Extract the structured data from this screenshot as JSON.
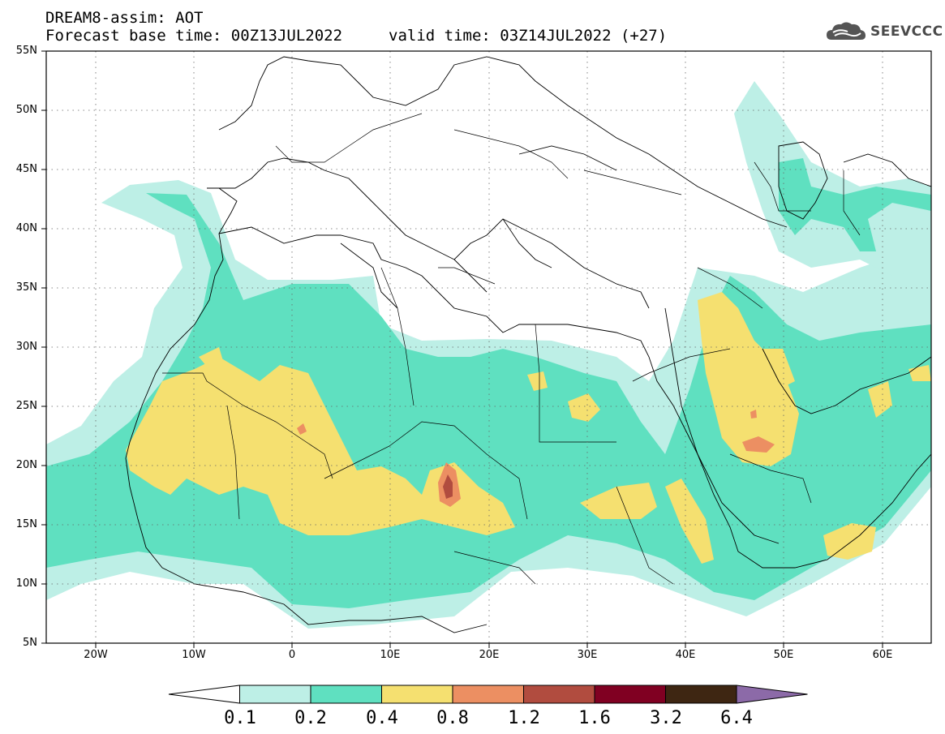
{
  "header": {
    "model_line": "DREAM8-assim: AOT",
    "base_time_line": "Forecast base time: 00Z13JUL2022",
    "valid_time_line": "valid time: 03Z14JUL2022 (+27)"
  },
  "logo": {
    "text": "SEEVCCC",
    "icon": "cloud-icon"
  },
  "map": {
    "lat_labels": [
      "55N",
      "50N",
      "45N",
      "40N",
      "35N",
      "30N",
      "25N",
      "20N",
      "15N",
      "10N",
      "5N"
    ],
    "lon_labels": [
      "20W",
      "10W",
      "0",
      "10E",
      "20E",
      "30E",
      "40E",
      "50E",
      "60E"
    ],
    "extent": {
      "lon": [
        -25,
        65
      ],
      "lat": [
        5,
        55
      ]
    },
    "gridlines": "dotted"
  },
  "colorbar": {
    "colors": [
      "#ffffff",
      "#bdefe6",
      "#5fe0c0",
      "#f5e070",
      "#ec8f62",
      "#b14c3f",
      "#800022",
      "#3e2612",
      "#8c6aa8"
    ],
    "labels": [
      "0.1",
      "0.2",
      "0.4",
      "0.8",
      "1.2",
      "1.6",
      "3.2",
      "6.4"
    ]
  }
}
